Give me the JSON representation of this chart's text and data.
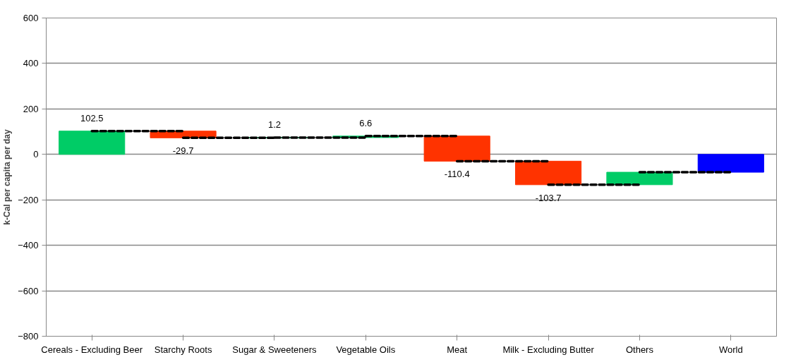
{
  "chart_data": {
    "type": "bar",
    "ylabel": "k-Cal per capita per day",
    "categories": [
      "Cereals - Excluding Beer",
      "Starchy Roots",
      "Sugar & Sweeteners",
      "Vegetable Oils",
      "Meat",
      "Milk - Excluding Butter",
      "Others",
      "World"
    ],
    "values": [
      102.5,
      -29.7,
      1.2,
      6.6,
      -110.4,
      -103.7,
      55,
      -78.5
    ],
    "base": [
      0,
      102.5,
      72.8,
      74.0,
      80.6,
      -29.8,
      -133.5,
      0
    ],
    "colors": [
      "#00cc66",
      "#ff3300",
      "#00cc66",
      "#00cc66",
      "#ff3300",
      "#ff3300",
      "#00cc66",
      "#0000ff"
    ],
    "value_labels": [
      "102.5",
      "-29.7",
      "1.2",
      "6.6",
      "-110.4",
      "-103.7",
      null,
      null
    ],
    "ylim": [
      -800,
      600
    ],
    "yticks": [
      -800,
      -600,
      -400,
      -200,
      0,
      200,
      400,
      600
    ],
    "grid": "y"
  }
}
